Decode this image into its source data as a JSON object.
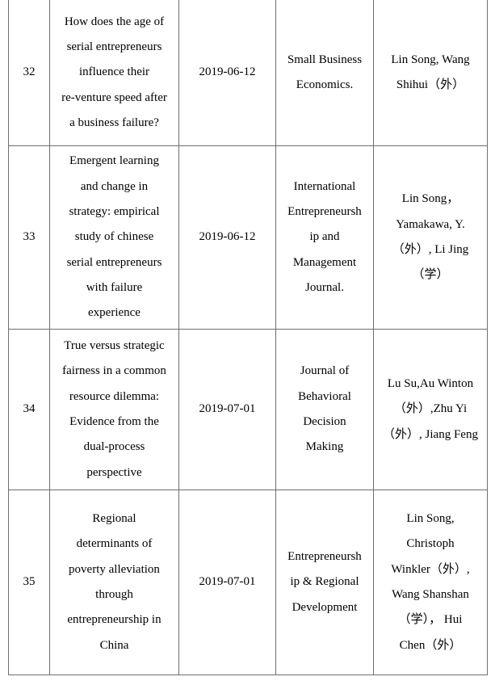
{
  "rows": [
    {
      "no": "32",
      "title": "How does the age of\nserial entrepreneurs\ninfluence their\nre-venture speed after\na business failure?",
      "date": "2019-06-12",
      "journal": "Small Business\nEconomics.",
      "authors": "Lin Song, Wang\nShihui（外）"
    },
    {
      "no": "33",
      "title": "Emergent learning\nand change in\nstrategy: empirical\nstudy of chinese\nserial entrepreneurs\nwith failure\nexperience",
      "date": "2019-06-12",
      "journal": "International\nEntrepreneursh\nip and\nManagement\nJournal.",
      "authors": "Lin Song，\nYamakawa, Y.\n（外）, Li Jing\n（学）"
    },
    {
      "no": "34",
      "title": "True versus strategic\nfairness in a common\nresource dilemma:\nEvidence from the\ndual‐process\nperspective",
      "date": "2019-07-01",
      "journal": "Journal of\nBehavioral\nDecision\nMaking",
      "authors": "Lu Su,Au Winton\n（外）,Zhu Yi\n（外）, Jiang Feng"
    },
    {
      "no": "35",
      "title": "Regional\ndeterminants of\npoverty alleviation\nthrough\nentrepreneurship in\nChina",
      "date": "2019-07-01",
      "journal": "Entrepreneursh\nip & Regional\nDevelopment",
      "authors": "Lin Song,\nChristoph\nWinkler（外）,\nWang Shanshan\n（学）， Hui\nChen（外）"
    }
  ]
}
